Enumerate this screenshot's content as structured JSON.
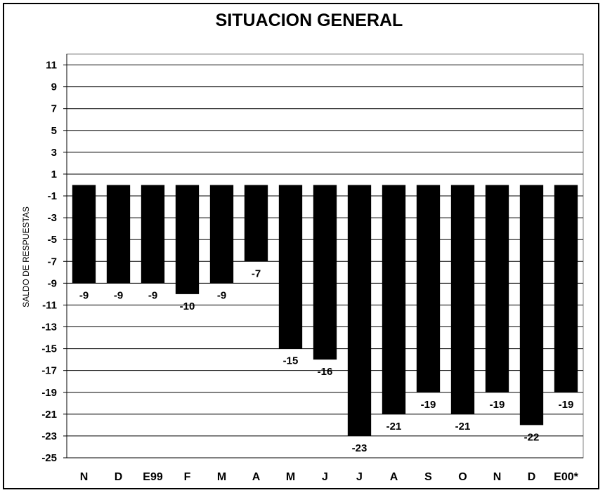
{
  "chart_data": {
    "type": "bar",
    "title": "SITUACION GENERAL",
    "xlabel": "",
    "ylabel": "SALDO DE RESPUESTAS",
    "categories": [
      "N",
      "D",
      "E99",
      "F",
      "M",
      "A",
      "M",
      "J",
      "J",
      "A",
      "S",
      "O",
      "N",
      "D",
      "E00*"
    ],
    "values": [
      -9,
      -9,
      -9,
      -10,
      -9,
      -7,
      -15,
      -16,
      -23,
      -21,
      -19,
      -21,
      -19,
      -22,
      -19
    ],
    "ylim": [
      -25,
      12
    ],
    "yticks": [
      11,
      9,
      7,
      5,
      3,
      1,
      -1,
      -3,
      -5,
      -7,
      -9,
      -11,
      -13,
      -15,
      -17,
      -19,
      -21,
      -23,
      -25
    ],
    "grid": true,
    "bar_color": "#000000",
    "data_labels": true
  }
}
